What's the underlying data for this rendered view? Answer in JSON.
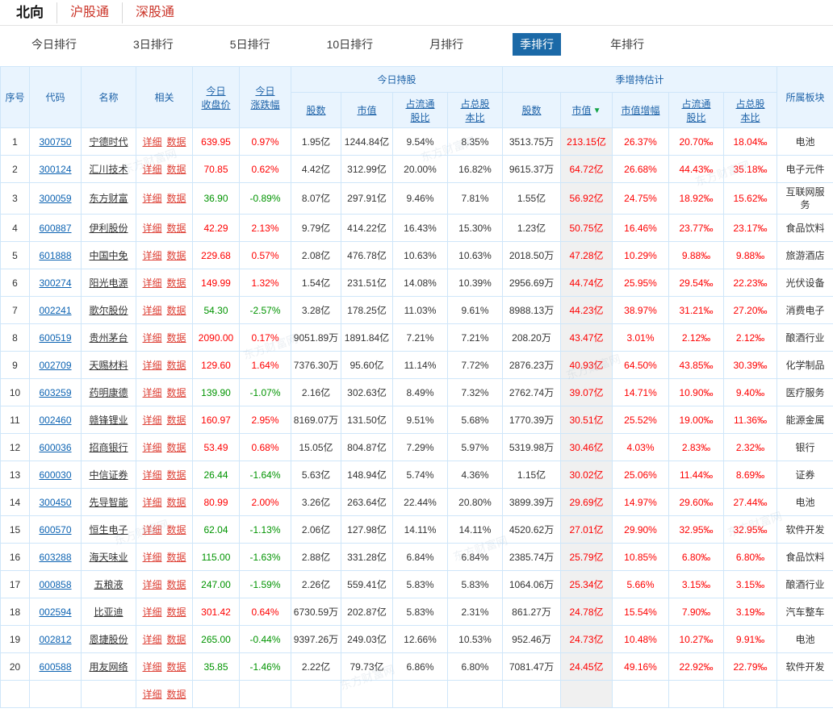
{
  "watermark_text": "东方财富网",
  "sort_arrow": "▼",
  "top_tabs": [
    {
      "label": "北向",
      "active": true
    },
    {
      "label": "沪股通",
      "active": false
    },
    {
      "label": "深股通",
      "active": false
    }
  ],
  "period_tabs": [
    {
      "label": "今日排行",
      "active": false
    },
    {
      "label": "3日排行",
      "active": false
    },
    {
      "label": "5日排行",
      "active": false
    },
    {
      "label": "10日排行",
      "active": false
    },
    {
      "label": "月排行",
      "active": false
    },
    {
      "label": "季排行",
      "active": true
    },
    {
      "label": "年排行",
      "active": false
    }
  ],
  "colors": {
    "up_red": "#fe0000",
    "down_green": "#009400",
    "link_blue": "#0d63b2",
    "related_link_red": "#de4237",
    "header_text_blue": "#1d62a8",
    "header_bg": "#e9f4fe",
    "active_tab_bg": "#1b69a7",
    "sorted_column_bg": "#f0f0f0",
    "sort_arrow_green": "#14a447",
    "market_tab_red": "#cb3428"
  },
  "table": {
    "headers": {
      "seq": "序号",
      "code": "代码",
      "name": "名称",
      "related": "相关",
      "close": "今日\n收盘价",
      "change": "今日\n涨跌幅",
      "today_group": "今日持股",
      "quarter_group": "季增持估计",
      "shares": "股数",
      "mktval": "市值",
      "float_pct": "占流通\n股比",
      "total_pct": "占总股\n本比",
      "q_shares": "股数",
      "q_mktval": "市值",
      "q_growth": "市值增幅",
      "q_float": "占流通\n股比",
      "q_total": "占总股\n本比",
      "sector": "所属板块"
    },
    "related_links": [
      "详细",
      "数据"
    ],
    "rows": [
      {
        "seq": "1",
        "code": "300750",
        "name": "宁德时代",
        "close": "639.95",
        "change": "0.97%",
        "shares": "1.95亿",
        "mktval": "1244.84亿",
        "float_pct": "9.54%",
        "total_pct": "8.35%",
        "q_shares": "3513.75万",
        "q_mktval": "213.15亿",
        "q_growth": "26.37%",
        "q_float": "20.70‰",
        "q_total": "18.04‰",
        "sector": "电池"
      },
      {
        "seq": "2",
        "code": "300124",
        "name": "汇川技术",
        "close": "70.85",
        "change": "0.62%",
        "shares": "4.42亿",
        "mktval": "312.99亿",
        "float_pct": "20.00%",
        "total_pct": "16.82%",
        "q_shares": "9615.37万",
        "q_mktval": "64.72亿",
        "q_growth": "26.68%",
        "q_float": "44.43‰",
        "q_total": "35.18‰",
        "sector": "电子元件"
      },
      {
        "seq": "3",
        "code": "300059",
        "name": "东方财富",
        "close": "36.90",
        "change": "-0.89%",
        "shares": "8.07亿",
        "mktval": "297.91亿",
        "float_pct": "9.46%",
        "total_pct": "7.81%",
        "q_shares": "1.55亿",
        "q_mktval": "56.92亿",
        "q_growth": "24.75%",
        "q_float": "18.92‰",
        "q_total": "15.62‰",
        "sector": "互联网服务"
      },
      {
        "seq": "4",
        "code": "600887",
        "name": "伊利股份",
        "close": "42.29",
        "change": "2.13%",
        "shares": "9.79亿",
        "mktval": "414.22亿",
        "float_pct": "16.43%",
        "total_pct": "15.30%",
        "q_shares": "1.23亿",
        "q_mktval": "50.75亿",
        "q_growth": "16.46%",
        "q_float": "23.77‰",
        "q_total": "23.17‰",
        "sector": "食品饮料"
      },
      {
        "seq": "5",
        "code": "601888",
        "name": "中国中免",
        "close": "229.68",
        "change": "0.57%",
        "shares": "2.08亿",
        "mktval": "476.78亿",
        "float_pct": "10.63%",
        "total_pct": "10.63%",
        "q_shares": "2018.50万",
        "q_mktval": "47.28亿",
        "q_growth": "10.29%",
        "q_float": "9.88‰",
        "q_total": "9.88‰",
        "sector": "旅游酒店"
      },
      {
        "seq": "6",
        "code": "300274",
        "name": "阳光电源",
        "close": "149.99",
        "change": "1.32%",
        "shares": "1.54亿",
        "mktval": "231.51亿",
        "float_pct": "14.08%",
        "total_pct": "10.39%",
        "q_shares": "2956.69万",
        "q_mktval": "44.74亿",
        "q_growth": "25.95%",
        "q_float": "29.54‰",
        "q_total": "22.23‰",
        "sector": "光伏设备"
      },
      {
        "seq": "7",
        "code": "002241",
        "name": "歌尔股份",
        "close": "54.30",
        "change": "-2.57%",
        "shares": "3.28亿",
        "mktval": "178.25亿",
        "float_pct": "11.03%",
        "total_pct": "9.61%",
        "q_shares": "8988.13万",
        "q_mktval": "44.23亿",
        "q_growth": "38.97%",
        "q_float": "31.21‰",
        "q_total": "27.20‰",
        "sector": "消费电子"
      },
      {
        "seq": "8",
        "code": "600519",
        "name": "贵州茅台",
        "close": "2090.00",
        "change": "0.17%",
        "shares": "9051.89万",
        "mktval": "1891.84亿",
        "float_pct": "7.21%",
        "total_pct": "7.21%",
        "q_shares": "208.20万",
        "q_mktval": "43.47亿",
        "q_growth": "3.01%",
        "q_float": "2.12‰",
        "q_total": "2.12‰",
        "sector": "酿酒行业"
      },
      {
        "seq": "9",
        "code": "002709",
        "name": "天赐材料",
        "close": "129.60",
        "change": "1.64%",
        "shares": "7376.30万",
        "mktval": "95.60亿",
        "float_pct": "11.14%",
        "total_pct": "7.72%",
        "q_shares": "2876.23万",
        "q_mktval": "40.93亿",
        "q_growth": "64.50%",
        "q_float": "43.85‰",
        "q_total": "30.39‰",
        "sector": "化学制品"
      },
      {
        "seq": "10",
        "code": "603259",
        "name": "药明康德",
        "close": "139.90",
        "change": "-1.07%",
        "shares": "2.16亿",
        "mktval": "302.63亿",
        "float_pct": "8.49%",
        "total_pct": "7.32%",
        "q_shares": "2762.74万",
        "q_mktval": "39.07亿",
        "q_growth": "14.71%",
        "q_float": "10.90‰",
        "q_total": "9.40‰",
        "sector": "医疗服务"
      },
      {
        "seq": "11",
        "code": "002460",
        "name": "赣锋锂业",
        "close": "160.97",
        "change": "2.95%",
        "shares": "8169.07万",
        "mktval": "131.50亿",
        "float_pct": "9.51%",
        "total_pct": "5.68%",
        "q_shares": "1770.39万",
        "q_mktval": "30.51亿",
        "q_growth": "25.52%",
        "q_float": "19.00‰",
        "q_total": "11.36‰",
        "sector": "能源金属"
      },
      {
        "seq": "12",
        "code": "600036",
        "name": "招商银行",
        "close": "53.49",
        "change": "0.68%",
        "shares": "15.05亿",
        "mktval": "804.87亿",
        "float_pct": "7.29%",
        "total_pct": "5.97%",
        "q_shares": "5319.98万",
        "q_mktval": "30.46亿",
        "q_growth": "4.03%",
        "q_float": "2.83‰",
        "q_total": "2.32‰",
        "sector": "银行"
      },
      {
        "seq": "13",
        "code": "600030",
        "name": "中信证券",
        "close": "26.44",
        "change": "-1.64%",
        "shares": "5.63亿",
        "mktval": "148.94亿",
        "float_pct": "5.74%",
        "total_pct": "4.36%",
        "q_shares": "1.15亿",
        "q_mktval": "30.02亿",
        "q_growth": "25.06%",
        "q_float": "11.44‰",
        "q_total": "8.69‰",
        "sector": "证券"
      },
      {
        "seq": "14",
        "code": "300450",
        "name": "先导智能",
        "close": "80.99",
        "change": "2.00%",
        "shares": "3.26亿",
        "mktval": "263.64亿",
        "float_pct": "22.44%",
        "total_pct": "20.80%",
        "q_shares": "3899.39万",
        "q_mktval": "29.69亿",
        "q_growth": "14.97%",
        "q_float": "29.60‰",
        "q_total": "27.44‰",
        "sector": "电池"
      },
      {
        "seq": "15",
        "code": "600570",
        "name": "恒生电子",
        "close": "62.04",
        "change": "-1.13%",
        "shares": "2.06亿",
        "mktval": "127.98亿",
        "float_pct": "14.11%",
        "total_pct": "14.11%",
        "q_shares": "4520.62万",
        "q_mktval": "27.01亿",
        "q_growth": "29.90%",
        "q_float": "32.95‰",
        "q_total": "32.95‰",
        "sector": "软件开发"
      },
      {
        "seq": "16",
        "code": "603288",
        "name": "海天味业",
        "close": "115.00",
        "change": "-1.63%",
        "shares": "2.88亿",
        "mktval": "331.28亿",
        "float_pct": "6.84%",
        "total_pct": "6.84%",
        "q_shares": "2385.74万",
        "q_mktval": "25.79亿",
        "q_growth": "10.85%",
        "q_float": "6.80‰",
        "q_total": "6.80‰",
        "sector": "食品饮料"
      },
      {
        "seq": "17",
        "code": "000858",
        "name": "五粮液",
        "close": "247.00",
        "change": "-1.59%",
        "shares": "2.26亿",
        "mktval": "559.41亿",
        "float_pct": "5.83%",
        "total_pct": "5.83%",
        "q_shares": "1064.06万",
        "q_mktval": "25.34亿",
        "q_growth": "5.66%",
        "q_float": "3.15‰",
        "q_total": "3.15‰",
        "sector": "酿酒行业"
      },
      {
        "seq": "18",
        "code": "002594",
        "name": "比亚迪",
        "close": "301.42",
        "change": "0.64%",
        "shares": "6730.59万",
        "mktval": "202.87亿",
        "float_pct": "5.83%",
        "total_pct": "2.31%",
        "q_shares": "861.27万",
        "q_mktval": "24.78亿",
        "q_growth": "15.54%",
        "q_float": "7.90‰",
        "q_total": "3.19‰",
        "sector": "汽车整车"
      },
      {
        "seq": "19",
        "code": "002812",
        "name": "恩捷股份",
        "close": "265.00",
        "change": "-0.44%",
        "shares": "9397.26万",
        "mktval": "249.03亿",
        "float_pct": "12.66%",
        "total_pct": "10.53%",
        "q_shares": "952.46万",
        "q_mktval": "24.73亿",
        "q_growth": "10.48%",
        "q_float": "10.27‰",
        "q_total": "9.91‰",
        "sector": "电池"
      },
      {
        "seq": "20",
        "code": "600588",
        "name": "用友网络",
        "close": "35.85",
        "change": "-1.46%",
        "shares": "2.22亿",
        "mktval": "79.73亿",
        "float_pct": "6.86%",
        "total_pct": "6.80%",
        "q_shares": "7081.47万",
        "q_mktval": "24.45亿",
        "q_growth": "49.16%",
        "q_float": "22.92‰",
        "q_total": "22.79‰",
        "sector": "软件开发"
      },
      {
        "seq": "",
        "code": "",
        "name": "",
        "close": "",
        "change": "",
        "shares": "",
        "mktval": "",
        "float_pct": "",
        "total_pct": "",
        "q_shares": "",
        "q_mktval": "",
        "q_growth": "",
        "q_float": "",
        "q_total": "",
        "sector": ""
      }
    ]
  }
}
